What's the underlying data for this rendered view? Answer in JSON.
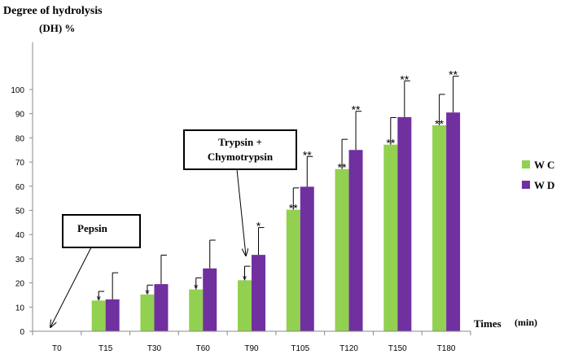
{
  "chart_data": {
    "type": "bar",
    "title": "Degree of hydrolysis",
    "ylabel": "(DH) %",
    "xlabel": "Times",
    "xlabel_unit": "(min)",
    "categories": [
      "T0",
      "T15",
      "T30",
      "T60",
      "T90",
      "T105",
      "T120",
      "T150",
      "T180"
    ],
    "ylim": [
      0,
      100
    ],
    "y_ticks": [
      "0",
      "10",
      "20",
      "30",
      "40",
      "50",
      "60",
      "70",
      "80",
      "90",
      "100"
    ],
    "grid": false,
    "legend_position": "right",
    "series": [
      {
        "name": "W C",
        "color": "#92D050",
        "values": [
          0,
          12.7,
          15.2,
          17.3,
          21.1,
          50.3,
          67.1,
          77.2,
          85.2
        ],
        "errors": [
          0,
          3.8,
          3.9,
          4.8,
          5.8,
          9.0,
          12.3,
          11.2,
          12.8
        ],
        "significance": [
          "",
          "*",
          "*",
          "*",
          "*",
          "**",
          "**",
          "**",
          "**"
        ]
      },
      {
        "name": "W D",
        "color": "#7030A0",
        "values": [
          0,
          13.2,
          19.5,
          26.0,
          31.6,
          59.8,
          75.0,
          88.6,
          90.5
        ],
        "errors": [
          0,
          11.0,
          12.0,
          11.7,
          11.3,
          12.5,
          16.0,
          15.0,
          15.0
        ],
        "significance": [
          "",
          "",
          "",
          "",
          "*",
          "**",
          "**",
          "**",
          "**"
        ]
      }
    ],
    "annotations": [
      {
        "text": "Pepsin",
        "arrow_to_category": "T0"
      },
      {
        "text": "Trypsin  +\nChymotrypsin",
        "arrow_to_category": "T90"
      }
    ]
  }
}
